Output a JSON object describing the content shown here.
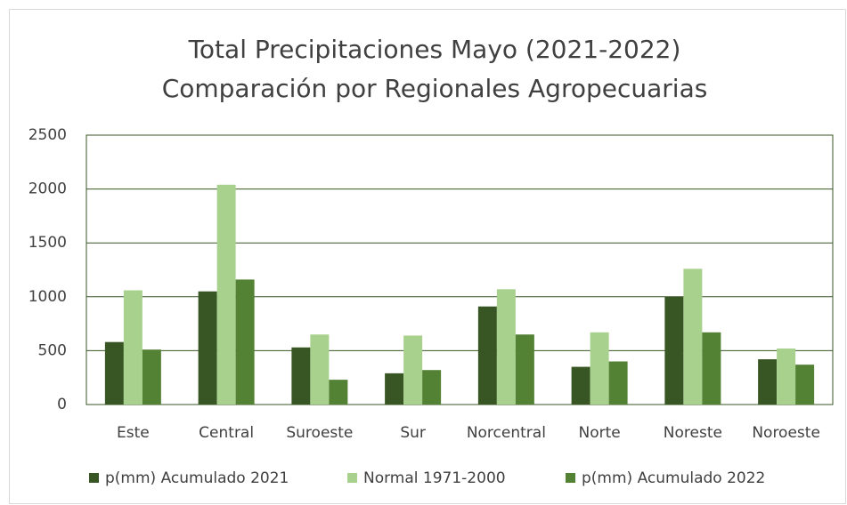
{
  "chart_data": {
    "type": "bar",
    "title": "Total Precipitaciones Mayo (2021-2022)",
    "subtitle": "Comparación por Regionales Agropecuarias",
    "categories": [
      "Este",
      "Central",
      "Suroeste",
      "Sur",
      "Norcentral",
      "Norte",
      "Noreste",
      "Noroeste"
    ],
    "series": [
      {
        "name": "p(mm) Acumulado 2021",
        "color": "#375623",
        "values": [
          580,
          1050,
          530,
          290,
          910,
          350,
          1000,
          420
        ]
      },
      {
        "name": "Normal 1971-2000",
        "color": "#a9d18e",
        "values": [
          1060,
          2040,
          650,
          640,
          1070,
          670,
          1260,
          520
        ]
      },
      {
        "name": "p(mm) Acumulado 2022",
        "color": "#548235",
        "values": [
          510,
          1160,
          230,
          320,
          650,
          400,
          670,
          370
        ]
      }
    ],
    "ylim": [
      0,
      2500
    ],
    "yticks": [
      0,
      500,
      1000,
      1500,
      2000,
      2500
    ],
    "grid": true,
    "legend": "bottom"
  }
}
